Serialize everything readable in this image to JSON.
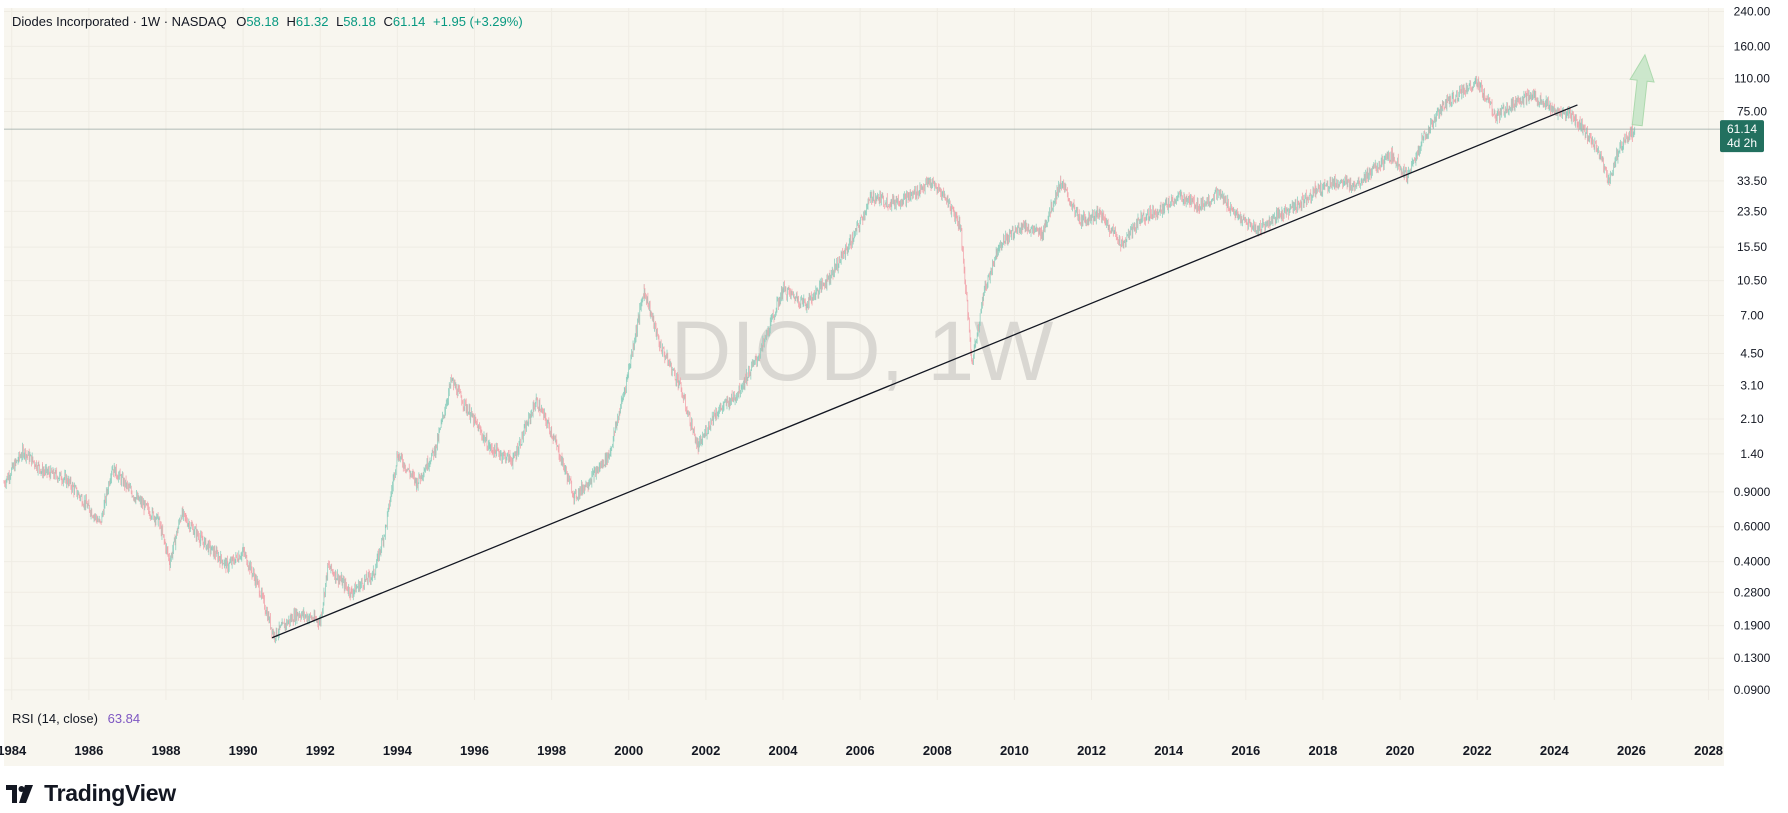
{
  "header": {
    "symbol_name": "Diodes Incorporated · 1W · NASDAQ",
    "o_label": "O",
    "o_value": "58.18",
    "h_label": "H",
    "h_value": "61.32",
    "l_label": "L",
    "l_value": "58.18",
    "c_label": "C",
    "c_value": "61.14",
    "change": "+1.95 (+3.29%)"
  },
  "watermark": "DIOD, 1W",
  "last_price": {
    "value": "61.14",
    "countdown": "4d 2h"
  },
  "rsi": {
    "label": "RSI (14, close)",
    "value": "63.84"
  },
  "branding": {
    "name": "TradingView"
  },
  "colors": {
    "background": "#f8f6ef",
    "up": "#089981",
    "down": "#f23645",
    "rsi": "#7e57c2",
    "price_tag": "#22705f",
    "arrow": "#c8e6c9"
  },
  "chart_data": {
    "type": "candlestick",
    "title": "DIOD, 1W",
    "y_scale": "log",
    "y_ticks": [
      "240.00",
      "160.00",
      "110.00",
      "75.00",
      "33.50",
      "23.50",
      "15.50",
      "10.50",
      "7.00",
      "4.50",
      "3.10",
      "2.10",
      "1.40",
      "0.9000",
      "0.6000",
      "0.4000",
      "0.2800",
      "0.1900",
      "0.1300",
      "0.0900"
    ],
    "x_ticks": [
      "1984",
      "1986",
      "1988",
      "1990",
      "1992",
      "1994",
      "1996",
      "1998",
      "2000",
      "2002",
      "2004",
      "2006",
      "2008",
      "2010",
      "2012",
      "2014",
      "2016",
      "2018",
      "2020",
      "2022",
      "2024",
      "2026",
      "2028"
    ],
    "xlim": [
      1983.8,
      2028.4
    ],
    "ylim": [
      0.08,
      250
    ],
    "series": [
      {
        "values": [
          {
            "x": 1983.8,
            "y": 1.0
          },
          {
            "x": 1984.3,
            "y": 1.45
          },
          {
            "x": 1984.8,
            "y": 1.15
          },
          {
            "x": 1985.4,
            "y": 1.05
          },
          {
            "x": 1986.0,
            "y": 0.75
          },
          {
            "x": 1986.3,
            "y": 0.62
          },
          {
            "x": 1986.6,
            "y": 1.2
          },
          {
            "x": 1987.2,
            "y": 0.85
          },
          {
            "x": 1987.8,
            "y": 0.65
          },
          {
            "x": 1988.1,
            "y": 0.4
          },
          {
            "x": 1988.4,
            "y": 0.7
          },
          {
            "x": 1988.9,
            "y": 0.52
          },
          {
            "x": 1989.6,
            "y": 0.38
          },
          {
            "x": 1990.0,
            "y": 0.45
          },
          {
            "x": 1990.4,
            "y": 0.3
          },
          {
            "x": 1990.8,
            "y": 0.17
          },
          {
            "x": 1991.4,
            "y": 0.22
          },
          {
            "x": 1992.0,
            "y": 0.2
          },
          {
            "x": 1992.2,
            "y": 0.38
          },
          {
            "x": 1992.8,
            "y": 0.28
          },
          {
            "x": 1993.4,
            "y": 0.35
          },
          {
            "x": 1993.7,
            "y": 0.6
          },
          {
            "x": 1994.0,
            "y": 1.4
          },
          {
            "x": 1994.5,
            "y": 1.0
          },
          {
            "x": 1995.0,
            "y": 1.5
          },
          {
            "x": 1995.4,
            "y": 3.3
          },
          {
            "x": 1995.9,
            "y": 2.2
          },
          {
            "x": 1996.4,
            "y": 1.5
          },
          {
            "x": 1997.0,
            "y": 1.3
          },
          {
            "x": 1997.6,
            "y": 2.6
          },
          {
            "x": 1998.0,
            "y": 1.8
          },
          {
            "x": 1998.6,
            "y": 0.85
          },
          {
            "x": 1999.1,
            "y": 1.1
          },
          {
            "x": 1999.5,
            "y": 1.4
          },
          {
            "x": 1999.9,
            "y": 3.0
          },
          {
            "x": 2000.4,
            "y": 9.5
          },
          {
            "x": 2000.8,
            "y": 5.0
          },
          {
            "x": 2001.3,
            "y": 3.2
          },
          {
            "x": 2001.8,
            "y": 1.5
          },
          {
            "x": 2002.2,
            "y": 2.2
          },
          {
            "x": 2002.8,
            "y": 2.8
          },
          {
            "x": 2003.4,
            "y": 4.5
          },
          {
            "x": 2004.0,
            "y": 9.5
          },
          {
            "x": 2004.6,
            "y": 8.0
          },
          {
            "x": 2005.2,
            "y": 11.0
          },
          {
            "x": 2005.8,
            "y": 17.0
          },
          {
            "x": 2006.3,
            "y": 28.0
          },
          {
            "x": 2006.8,
            "y": 26.0
          },
          {
            "x": 2007.3,
            "y": 28.0
          },
          {
            "x": 2007.8,
            "y": 33.0
          },
          {
            "x": 2008.2,
            "y": 28.0
          },
          {
            "x": 2008.6,
            "y": 20.0
          },
          {
            "x": 2008.9,
            "y": 4.0
          },
          {
            "x": 2009.2,
            "y": 9.0
          },
          {
            "x": 2009.6,
            "y": 16.0
          },
          {
            "x": 2010.2,
            "y": 20.0
          },
          {
            "x": 2010.7,
            "y": 18.0
          },
          {
            "x": 2011.2,
            "y": 33.0
          },
          {
            "x": 2011.7,
            "y": 21.0
          },
          {
            "x": 2012.2,
            "y": 23.0
          },
          {
            "x": 2012.8,
            "y": 16.0
          },
          {
            "x": 2013.3,
            "y": 22.0
          },
          {
            "x": 2013.8,
            "y": 24.0
          },
          {
            "x": 2014.3,
            "y": 28.0
          },
          {
            "x": 2014.8,
            "y": 25.0
          },
          {
            "x": 2015.3,
            "y": 29.0
          },
          {
            "x": 2015.8,
            "y": 22.0
          },
          {
            "x": 2016.3,
            "y": 19.0
          },
          {
            "x": 2016.8,
            "y": 22.0
          },
          {
            "x": 2017.3,
            "y": 25.0
          },
          {
            "x": 2017.8,
            "y": 30.0
          },
          {
            "x": 2018.3,
            "y": 33.0
          },
          {
            "x": 2018.8,
            "y": 32.0
          },
          {
            "x": 2019.3,
            "y": 38.0
          },
          {
            "x": 2019.8,
            "y": 45.0
          },
          {
            "x": 2020.2,
            "y": 35.0
          },
          {
            "x": 2020.6,
            "y": 55.0
          },
          {
            "x": 2021.1,
            "y": 80.0
          },
          {
            "x": 2021.6,
            "y": 95.0
          },
          {
            "x": 2022.0,
            "y": 105.0
          },
          {
            "x": 2022.5,
            "y": 70.0
          },
          {
            "x": 2023.0,
            "y": 85.0
          },
          {
            "x": 2023.5,
            "y": 90.0
          },
          {
            "x": 2024.0,
            "y": 75.0
          },
          {
            "x": 2024.4,
            "y": 72.0
          },
          {
            "x": 2024.8,
            "y": 60.0
          },
          {
            "x": 2025.2,
            "y": 45.0
          },
          {
            "x": 2025.4,
            "y": 33.0
          },
          {
            "x": 2025.7,
            "y": 50.0
          },
          {
            "x": 2026.1,
            "y": 61.14
          }
        ]
      }
    ],
    "trendline": {
      "x1": 1990.75,
      "y1": 0.165,
      "x2": 2024.6,
      "y2": 81
    },
    "current_price": 61.14,
    "projection_arrow": {
      "x1": 2026.15,
      "y1": 64,
      "x2": 2026.35,
      "y2": 145
    }
  }
}
